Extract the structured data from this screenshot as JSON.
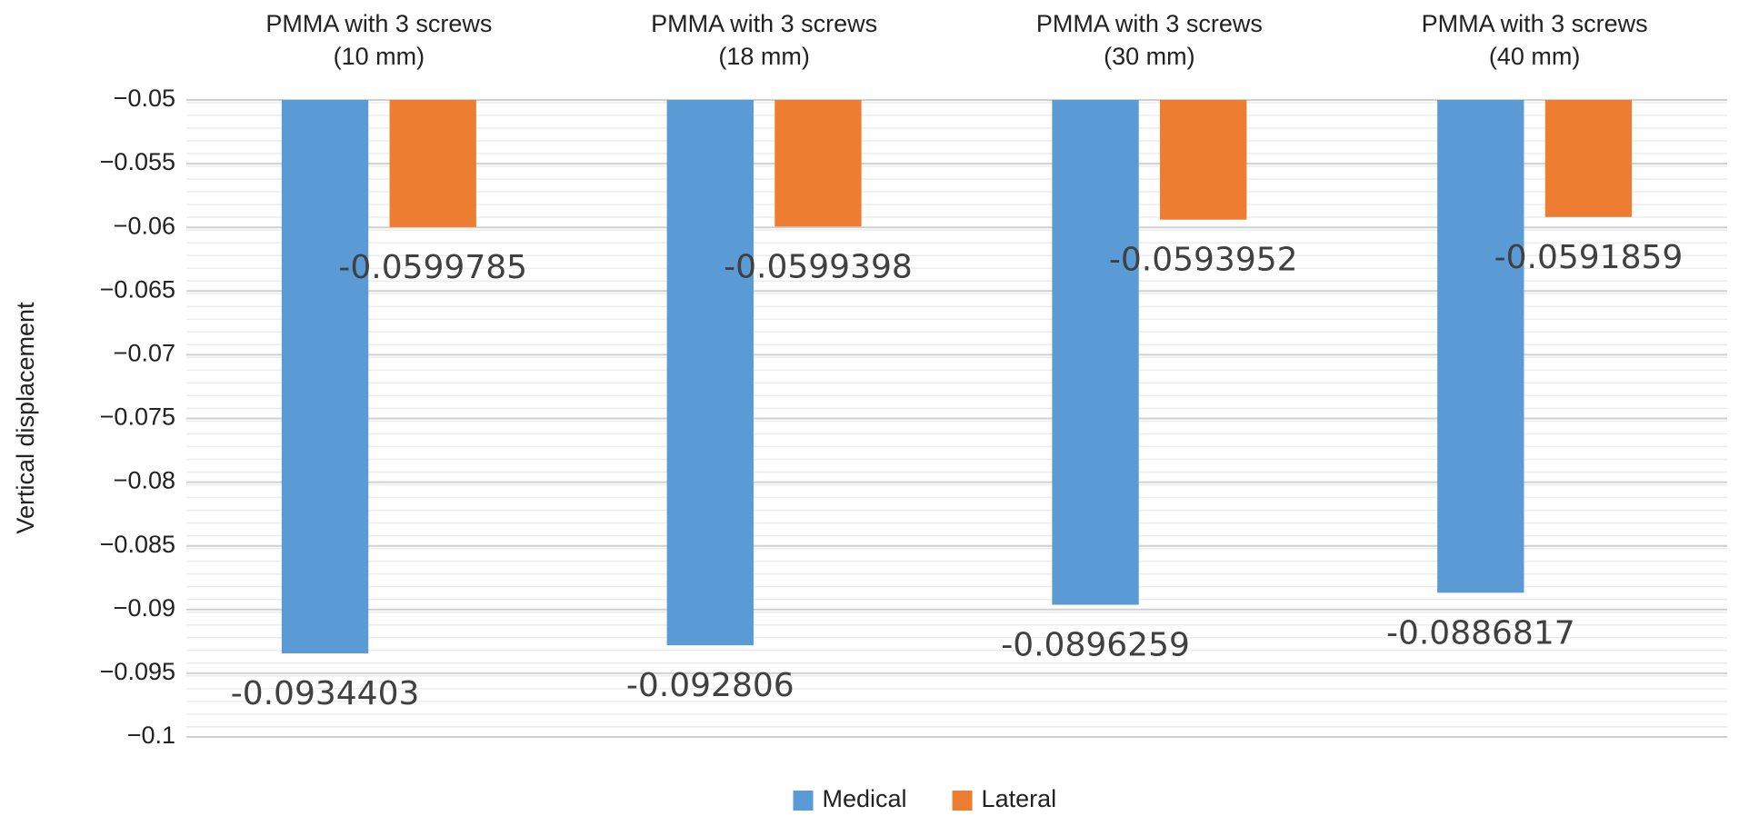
{
  "chart_data": {
    "type": "bar",
    "y_label": "Vertical displacement",
    "categories": [
      "PMMA with 3 screws\n(10 mm)",
      "PMMA with 3 screws\n(18 mm)",
      "PMMA with 3 screws\n(30 mm)",
      "PMMA with 3 screws\n(40 mm)"
    ],
    "series": [
      {
        "name": "Medical",
        "color": "#5b9bd5",
        "values": [
          -0.0934403,
          -0.092806,
          -0.0896259,
          -0.0886817
        ]
      },
      {
        "name": "Lateral",
        "color": "#ed7d31",
        "values": [
          -0.0599785,
          -0.0599398,
          -0.0593952,
          -0.0591859
        ]
      }
    ],
    "ylim": [
      -0.1,
      -0.05
    ],
    "yticks": [
      {
        "value": -0.1,
        "label": "−0.1"
      },
      {
        "value": -0.095,
        "label": "−0.095"
      },
      {
        "value": -0.09,
        "label": "−0.09"
      },
      {
        "value": -0.085,
        "label": "−0.085"
      },
      {
        "value": -0.08,
        "label": "−0.08"
      },
      {
        "value": -0.075,
        "label": "−0.075"
      },
      {
        "value": -0.07,
        "label": "−0.07"
      },
      {
        "value": -0.065,
        "label": "−0.065"
      },
      {
        "value": -0.06,
        "label": "−0.06"
      },
      {
        "value": -0.055,
        "label": "−0.055"
      },
      {
        "value": -0.05,
        "label": "−0.05"
      }
    ],
    "grid": true,
    "legend": "bottom"
  }
}
